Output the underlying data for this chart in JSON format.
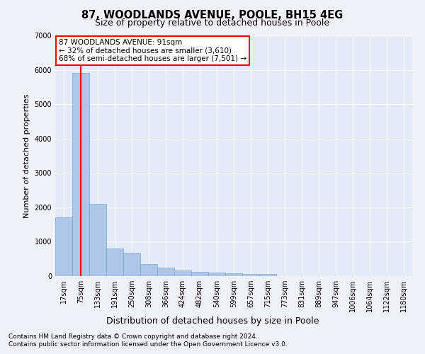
{
  "title1": "87, WOODLANDS AVENUE, POOLE, BH15 4EG",
  "title2": "Size of property relative to detached houses in Poole",
  "xlabel": "Distribution of detached houses by size in Poole",
  "ylabel": "Number of detached properties",
  "bar_labels": [
    "17sqm",
    "75sqm",
    "133sqm",
    "191sqm",
    "250sqm",
    "308sqm",
    "366sqm",
    "424sqm",
    "482sqm",
    "540sqm",
    "599sqm",
    "657sqm",
    "715sqm",
    "773sqm",
    "831sqm",
    "889sqm",
    "947sqm",
    "1006sqm",
    "1064sqm",
    "1122sqm",
    "1180sqm"
  ],
  "bar_values": [
    1700,
    5900,
    2100,
    800,
    680,
    340,
    250,
    175,
    120,
    95,
    80,
    70,
    60,
    0,
    0,
    0,
    0,
    0,
    0,
    0,
    0
  ],
  "bar_color": "#aec6e8",
  "bar_edge_color": "#7aaad0",
  "annotation_box_text": "87 WOODLANDS AVENUE: 91sqm\n← 32% of detached houses are smaller (3,610)\n68% of semi-detached houses are larger (7,501) →",
  "ylim": [
    0,
    7000
  ],
  "yticks": [
    0,
    1000,
    2000,
    3000,
    4000,
    5000,
    6000,
    7000
  ],
  "footer1": "Contains HM Land Registry data © Crown copyright and database right 2024.",
  "footer2": "Contains public sector information licensed under the Open Government Licence v3.0.",
  "bg_color": "#eef2f8",
  "plot_bg_color": "#e4eaf6",
  "grid_color": "#ffffff"
}
